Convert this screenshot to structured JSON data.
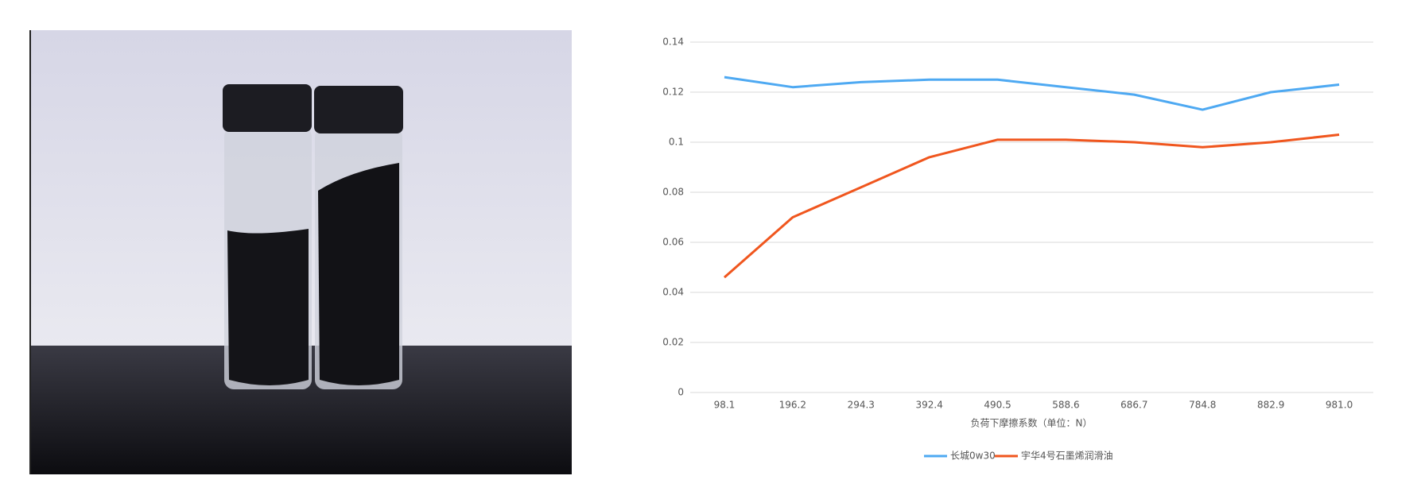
{
  "chart_data": {
    "type": "line",
    "x_label": "负荷下摩擦系数（单位：N）",
    "categories": [
      "98.1",
      "196.2",
      "294.3",
      "392.4",
      "490.5",
      "588.6",
      "686.7",
      "784.8",
      "882.9",
      "981.0"
    ],
    "series": [
      {
        "name": "长城0w30",
        "color": "#4ea9f2",
        "values": [
          0.126,
          0.122,
          0.124,
          0.125,
          0.125,
          0.122,
          0.119,
          0.113,
          0.12,
          0.123
        ]
      },
      {
        "name": "宇华4号石墨烯润滑油",
        "color": "#f0561e",
        "values": [
          0.046,
          0.07,
          0.082,
          0.094,
          0.101,
          0.101,
          0.1,
          0.098,
          0.1,
          0.103
        ]
      }
    ],
    "ylim": [
      0,
      0.14
    ],
    "yticks": [
      0,
      0.02,
      0.04,
      0.06,
      0.08,
      0.1,
      0.12,
      0.14
    ],
    "grid": true
  }
}
